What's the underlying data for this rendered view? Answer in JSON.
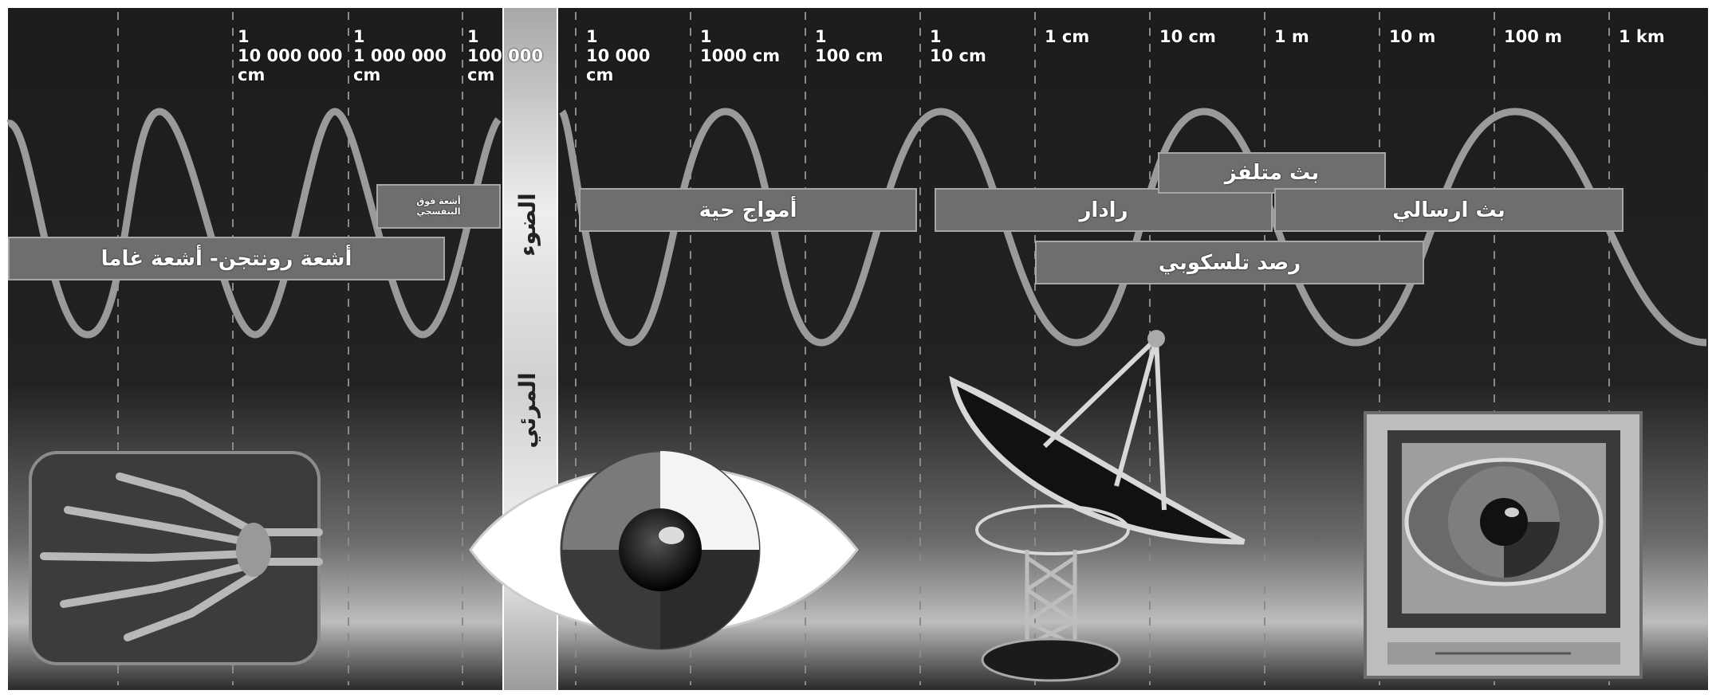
{
  "diagram": {
    "ticks_left": [
      {
        "id": "t1",
        "label": "1\n10 000 000\ncm"
      },
      {
        "id": "t2",
        "label": "1\n1 000 000\ncm"
      },
      {
        "id": "t3",
        "label": "1\n100 000\ncm"
      }
    ],
    "ticks_right": [
      {
        "id": "t4",
        "label": "1\n10 000\ncm"
      },
      {
        "id": "t5",
        "label": "1\n1000 cm"
      },
      {
        "id": "t6",
        "label": "1\n100 cm"
      },
      {
        "id": "t7",
        "label": "1\n10 cm"
      },
      {
        "id": "t8",
        "label": "1 cm"
      },
      {
        "id": "t9",
        "label": "10 cm"
      },
      {
        "id": "t10",
        "label": "1 m"
      },
      {
        "id": "t11",
        "label": "10 m"
      },
      {
        "id": "t12",
        "label": "100 m"
      },
      {
        "id": "t13",
        "label": "1 km"
      }
    ],
    "bands": {
      "xray_gamma": "أشعة رونتجن- أشعة غاما",
      "ultraviolet": "أشعة فوق\nالبنفسجي",
      "infrared": "أمواج حية",
      "radar": "رادار",
      "fm_broadcast": "بث متلفز",
      "radio_broadcast": "بث ارسالي",
      "radio_astronomy": "رصد تلسكوبي"
    },
    "strip": {
      "light": "الضوء",
      "visible": "المرئي"
    }
  }
}
